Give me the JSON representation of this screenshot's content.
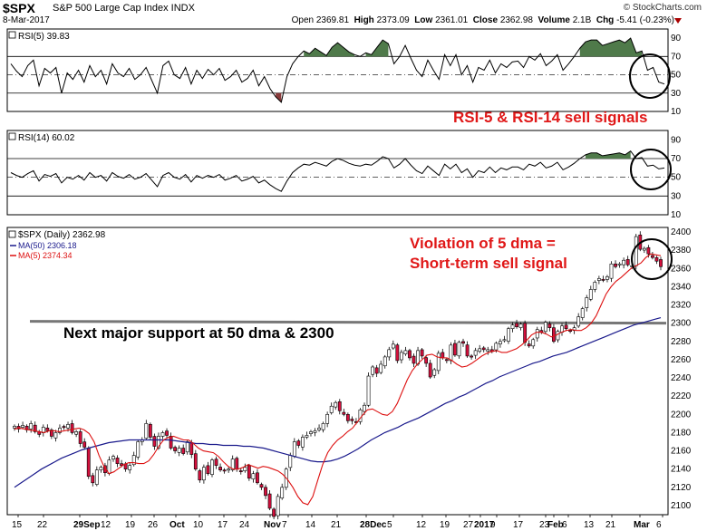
{
  "header": {
    "symbol": "$SPX",
    "description": "S&P 500 Large Cap Index INDX",
    "date": "8-Mar-2017",
    "copyright": "© StockCharts.com",
    "quote": {
      "open_label": "Open",
      "open": "2369.81",
      "high_label": "High",
      "high": "2373.09",
      "low_label": "Low",
      "low": "2361.01",
      "close_label": "Close",
      "close": "2362.98",
      "volume_label": "Volume",
      "volume": "2.1B",
      "chg_label": "Chg",
      "chg": "-5.41 (-0.23%)"
    }
  },
  "annotations": {
    "rsi_signal": "RSI-5 & RSI-14 sell signals",
    "violation_line1": "Violation of 5 dma =",
    "violation_line2": "Short-term sell signal",
    "support": "Next major support at 50 dma & 2300"
  },
  "colors": {
    "price_up": "#ffffff",
    "price_down": "#d40f3c",
    "ma50": "#1a1a8c",
    "ma5": "#dd1010",
    "overbought": "#4f7a4a",
    "oversold": "#8a3b3b",
    "annotation": "#e01818",
    "support": "#777777"
  },
  "chart_data": [
    {
      "type": "line",
      "name": "rsi5",
      "label": "RSI(5) 39.83",
      "ylim": [
        10,
        100
      ],
      "yticks": [
        90,
        70,
        50,
        30,
        10
      ],
      "overbought": 70,
      "oversold": 30,
      "midline": 50,
      "values": [
        62,
        54,
        48,
        60,
        66,
        38,
        57,
        52,
        58,
        30,
        52,
        45,
        55,
        42,
        60,
        48,
        55,
        40,
        62,
        52,
        48,
        57,
        45,
        50,
        58,
        44,
        30,
        60,
        65,
        50,
        46,
        58,
        40,
        55,
        46,
        56,
        50,
        57,
        44,
        48,
        55,
        42,
        46,
        55,
        38,
        48,
        35,
        26,
        20,
        48,
        62,
        70,
        76,
        73,
        79,
        75,
        71,
        80,
        85,
        80,
        75,
        72,
        70,
        74,
        72,
        80,
        88,
        84,
        62,
        70,
        82,
        68,
        55,
        48,
        66,
        55,
        45,
        72,
        60,
        72,
        50,
        60,
        42,
        58,
        55,
        66,
        52,
        62,
        58,
        64,
        65,
        58,
        70,
        66,
        73,
        60,
        65,
        72,
        55,
        62,
        70,
        79,
        86,
        88,
        88,
        82,
        84,
        86,
        88,
        85,
        90,
        74,
        76,
        55,
        58,
        42,
        40
      ]
    },
    {
      "type": "line",
      "name": "rsi14",
      "label": "RSI(14) 60.02",
      "ylim": [
        10,
        100
      ],
      "yticks": [
        90,
        70,
        50,
        30,
        10
      ],
      "overbought": 70,
      "oversold": 30,
      "midline": 50,
      "values": [
        55,
        52,
        50,
        54,
        57,
        46,
        53,
        51,
        54,
        44,
        50,
        48,
        52,
        47,
        55,
        50,
        52,
        46,
        55,
        51,
        49,
        53,
        48,
        50,
        54,
        47,
        40,
        52,
        55,
        50,
        48,
        53,
        45,
        52,
        49,
        52,
        50,
        53,
        47,
        49,
        52,
        46,
        48,
        51,
        44,
        47,
        42,
        38,
        35,
        46,
        55,
        60,
        64,
        63,
        66,
        64,
        62,
        67,
        70,
        68,
        65,
        63,
        62,
        64,
        63,
        67,
        72,
        70,
        60,
        64,
        70,
        63,
        57,
        54,
        62,
        57,
        52,
        64,
        59,
        64,
        55,
        59,
        50,
        57,
        55,
        61,
        55,
        60,
        58,
        61,
        61,
        58,
        64,
        62,
        66,
        60,
        62,
        66,
        58,
        61,
        65,
        70,
        74,
        76,
        76,
        73,
        74,
        75,
        76,
        74,
        78,
        70,
        71,
        62,
        63,
        59,
        60
      ]
    },
    {
      "type": "candlestick",
      "name": "price",
      "label": "$SPX (Daily) 2362.98",
      "ylim": [
        2090,
        2405
      ],
      "yticks": [
        2400,
        2380,
        2360,
        2340,
        2320,
        2300,
        2280,
        2260,
        2240,
        2220,
        2200,
        2180,
        2160,
        2140,
        2120,
        2100
      ],
      "xticks": [
        "15",
        "22",
        "29Sep",
        "12",
        "19",
        "26",
        "Oct",
        "10",
        "17",
        "24",
        "Nov",
        "7",
        "14",
        "21",
        "28Dec",
        "5",
        "12",
        "19",
        "27",
        "2017",
        "9",
        "17",
        "23",
        "Feb",
        "6",
        "13",
        "21",
        "Mar",
        "6"
      ],
      "closes": [
        2187,
        2184,
        2188,
        2183,
        2190,
        2181,
        2178,
        2186,
        2182,
        2176,
        2180,
        2185,
        2186,
        2189,
        2180,
        2181,
        2168,
        2164,
        2132,
        2125,
        2139,
        2142,
        2136,
        2150,
        2154,
        2146,
        2144,
        2140,
        2144,
        2155,
        2170,
        2172,
        2190,
        2175,
        2165,
        2176,
        2180,
        2177,
        2163,
        2160,
        2163,
        2157,
        2170,
        2156,
        2140,
        2128,
        2142,
        2135,
        2150,
        2144,
        2139,
        2138,
        2140,
        2151,
        2140,
        2138,
        2142,
        2130,
        2135,
        2125,
        2120,
        2111,
        2097,
        2088,
        2110,
        2120,
        2140,
        2155,
        2170,
        2166,
        2175,
        2177,
        2181,
        2182,
        2185,
        2190,
        2200,
        2209,
        2213,
        2204,
        2200,
        2193,
        2193,
        2191,
        2205,
        2210,
        2242,
        2252,
        2245,
        2255,
        2263,
        2271,
        2277,
        2259,
        2268,
        2270,
        2262,
        2256,
        2270,
        2264,
        2256,
        2241,
        2249,
        2267,
        2262,
        2259,
        2276,
        2265,
        2279,
        2278,
        2264,
        2263,
        2270,
        2272,
        2271,
        2271,
        2269,
        2278,
        2280,
        2282,
        2294,
        2298,
        2296,
        2299,
        2279,
        2275,
        2282,
        2293,
        2290,
        2301,
        2295,
        2280,
        2291,
        2297,
        2294,
        2292,
        2295,
        2307,
        2316,
        2328,
        2337,
        2345,
        2349,
        2347,
        2351,
        2365,
        2362,
        2365,
        2369,
        2364,
        2363,
        2395,
        2381,
        2382,
        2376,
        2372,
        2368,
        2362
      ],
      "ma50": [
        2120,
        2125,
        2130,
        2135,
        2140,
        2144,
        2148,
        2152,
        2155,
        2158,
        2161,
        2163,
        2165,
        2167,
        2169,
        2170,
        2171,
        2172,
        2172,
        2172,
        2172,
        2172,
        2172,
        2172,
        2171,
        2170,
        2169,
        2168,
        2168,
        2167,
        2167,
        2166,
        2166,
        2166,
        2165,
        2165,
        2164,
        2163,
        2161,
        2159,
        2157,
        2155,
        2153,
        2151,
        2149,
        2148,
        2148,
        2149,
        2151,
        2154,
        2158,
        2162,
        2167,
        2172,
        2176,
        2180,
        2183,
        2186,
        2190,
        2193,
        2196,
        2200,
        2204,
        2208,
        2212,
        2215,
        2219,
        2222,
        2226,
        2230,
        2234,
        2237,
        2241,
        2244,
        2247,
        2250,
        2253,
        2256,
        2258,
        2261,
        2264,
        2266,
        2268,
        2271,
        2274,
        2277,
        2280,
        2283,
        2286,
        2289,
        2292,
        2295,
        2298,
        2300,
        2302,
        2304,
        2306
      ],
      "ma5": [
        2184,
        2185,
        2184,
        2183,
        2182,
        2181,
        2180,
        2182,
        2182,
        2181,
        2182,
        2183,
        2184,
        2185,
        2183,
        2179,
        2170,
        2155,
        2143,
        2135,
        2137,
        2141,
        2145,
        2147,
        2147,
        2146,
        2146,
        2149,
        2156,
        2165,
        2172,
        2175,
        2176,
        2174,
        2172,
        2172,
        2168,
        2163,
        2160,
        2159,
        2158,
        2154,
        2148,
        2143,
        2140,
        2140,
        2142,
        2145,
        2143,
        2141,
        2143,
        2142,
        2140,
        2138,
        2134,
        2128,
        2120,
        2110,
        2103,
        2101,
        2110,
        2128,
        2145,
        2158,
        2166,
        2172,
        2176,
        2181,
        2185,
        2192,
        2199,
        2205,
        2206,
        2203,
        2200,
        2199,
        2203,
        2212,
        2225,
        2238,
        2248,
        2255,
        2260,
        2265,
        2266,
        2263,
        2262,
        2262,
        2259,
        2255,
        2252,
        2253,
        2256,
        2260,
        2264,
        2267,
        2269,
        2270,
        2268,
        2268,
        2270,
        2272,
        2276,
        2281,
        2287,
        2290,
        2290,
        2288,
        2285,
        2287,
        2290,
        2292,
        2293,
        2292,
        2292,
        2295,
        2300,
        2308,
        2320,
        2332,
        2340,
        2346,
        2350,
        2355,
        2360,
        2363,
        2366,
        2372,
        2376,
        2375,
        2374
      ]
    }
  ]
}
